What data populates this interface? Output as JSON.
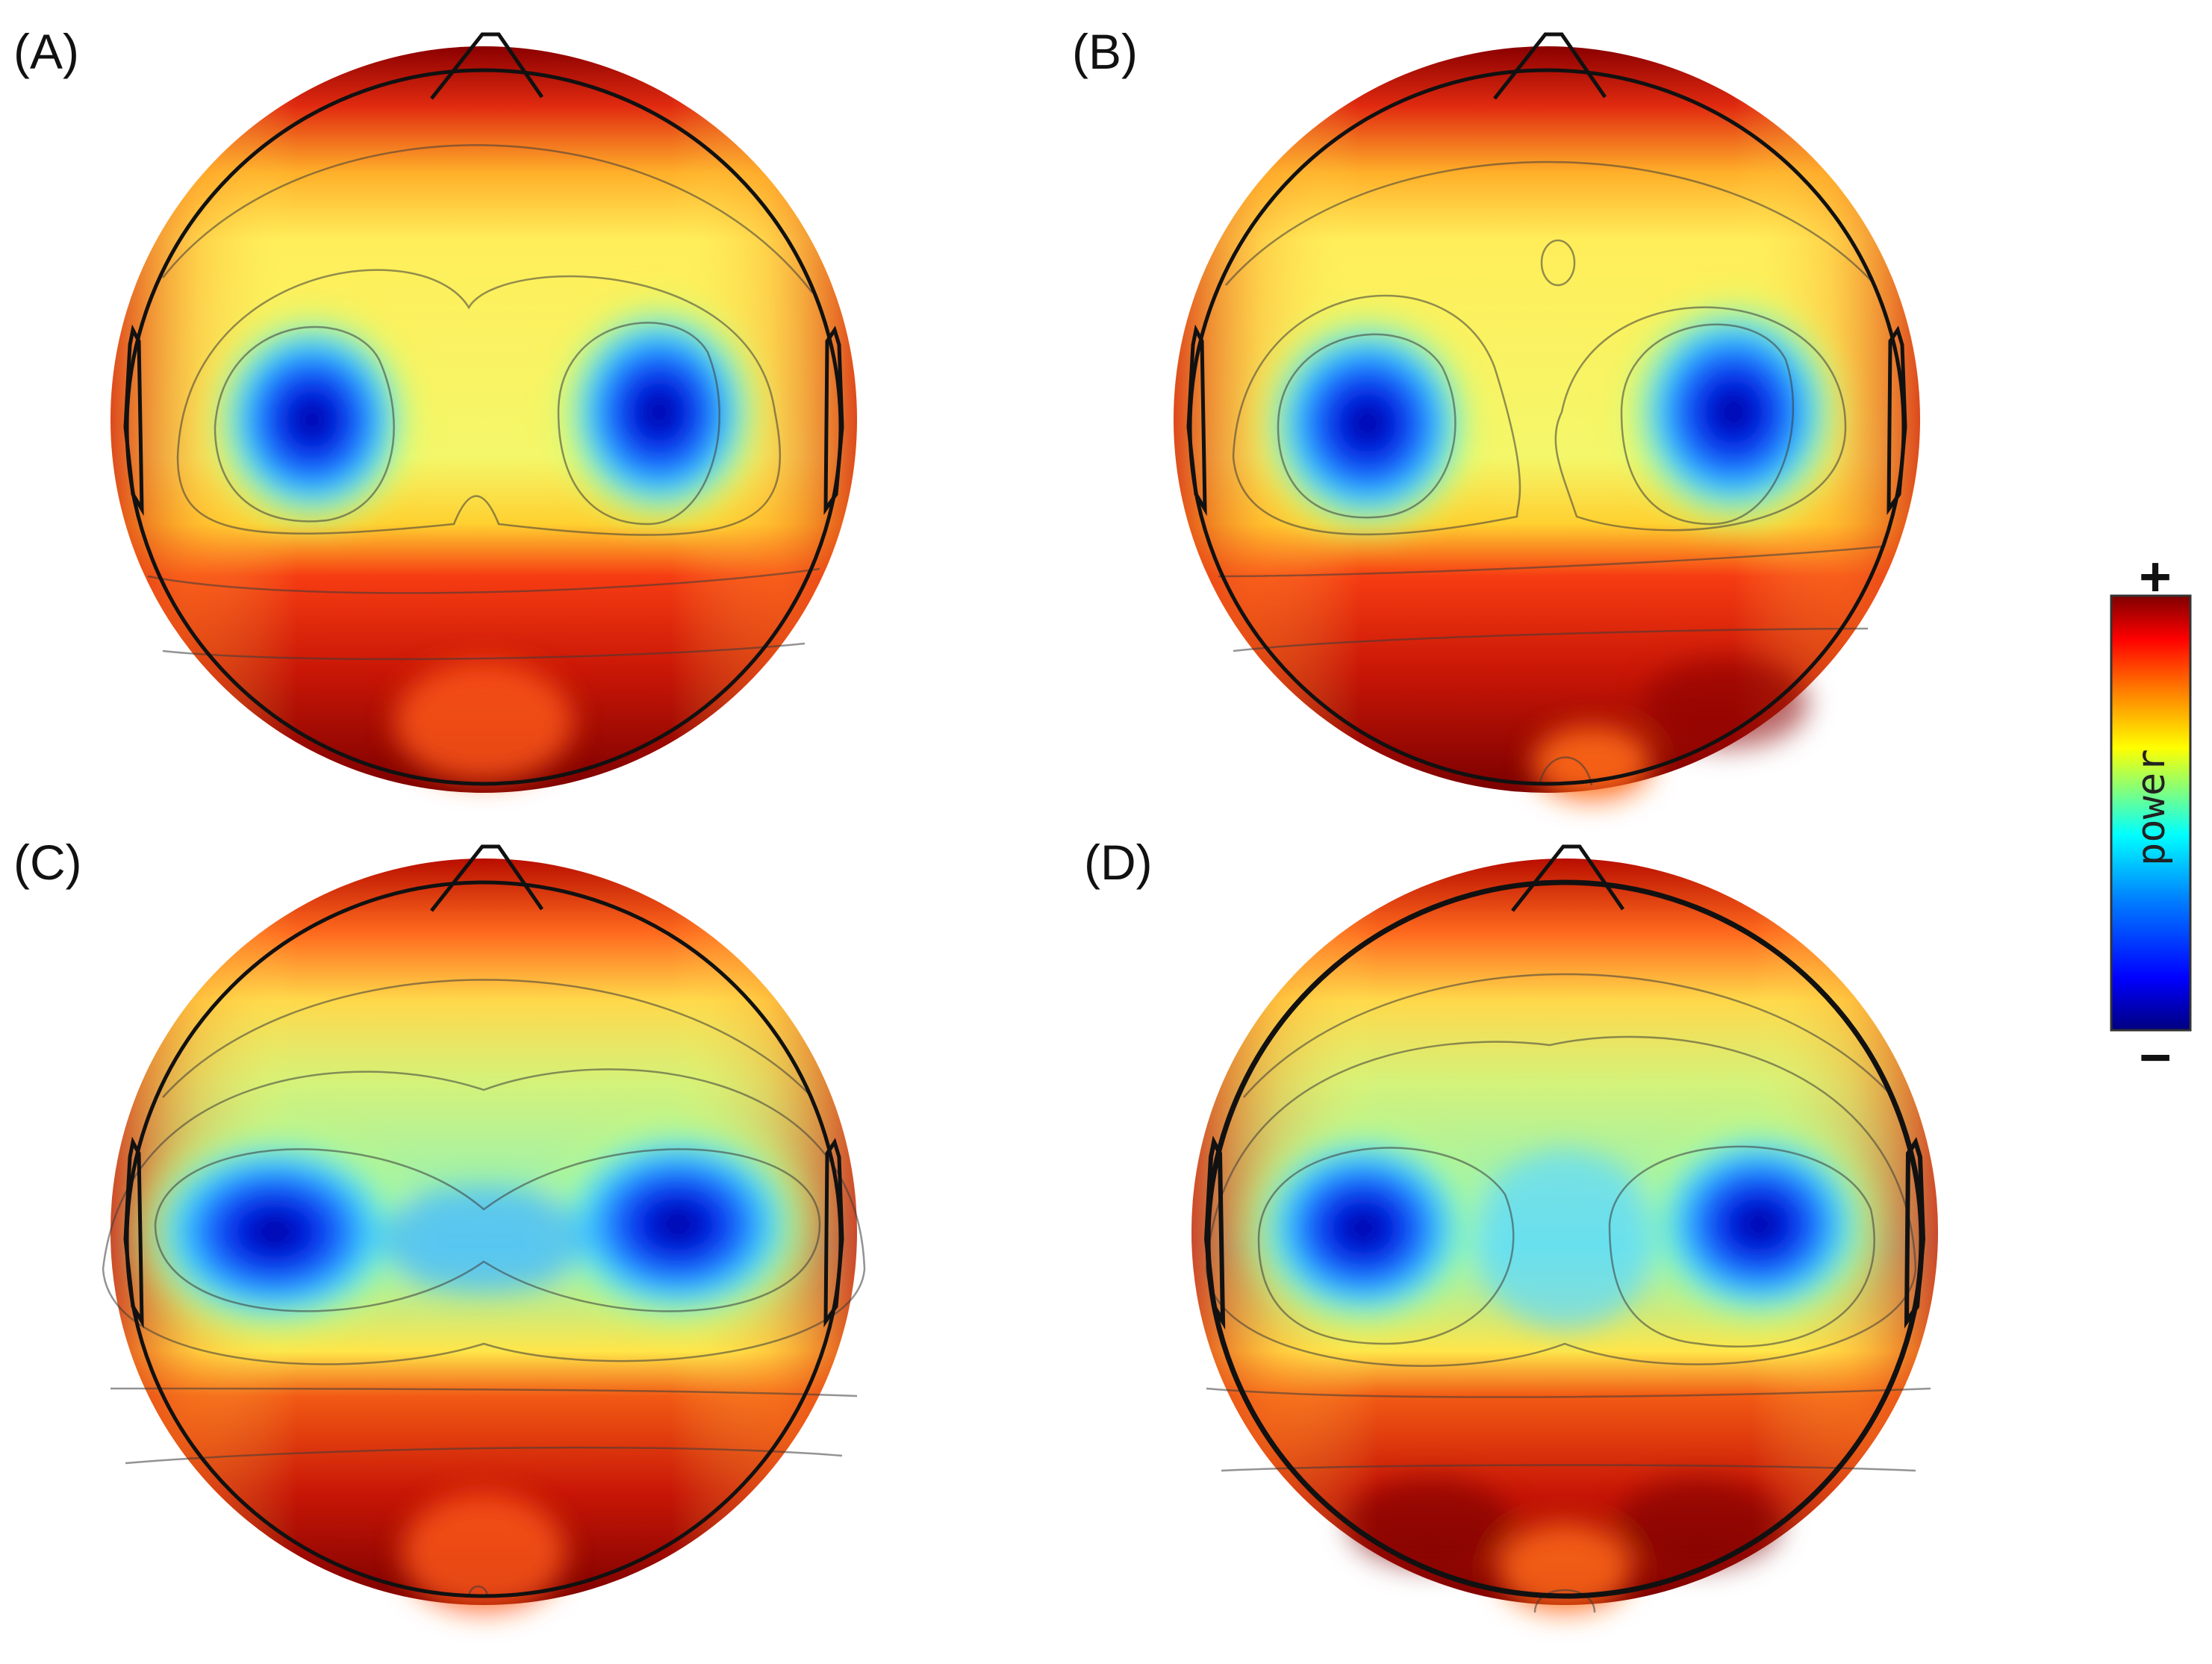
{
  "panels": [
    {
      "label": "(A)"
    },
    {
      "label": "(B)"
    },
    {
      "label": "(C)"
    },
    {
      "label": "(D)"
    }
  ],
  "colorbar": {
    "title": "power",
    "max_label": "+",
    "min_label": "−",
    "colors": [
      "#00007f",
      "#0000ff",
      "#007fff",
      "#00ffff",
      "#7fff7f",
      "#ffff00",
      "#ff7f00",
      "#ff0000",
      "#7f0000"
    ]
  }
}
